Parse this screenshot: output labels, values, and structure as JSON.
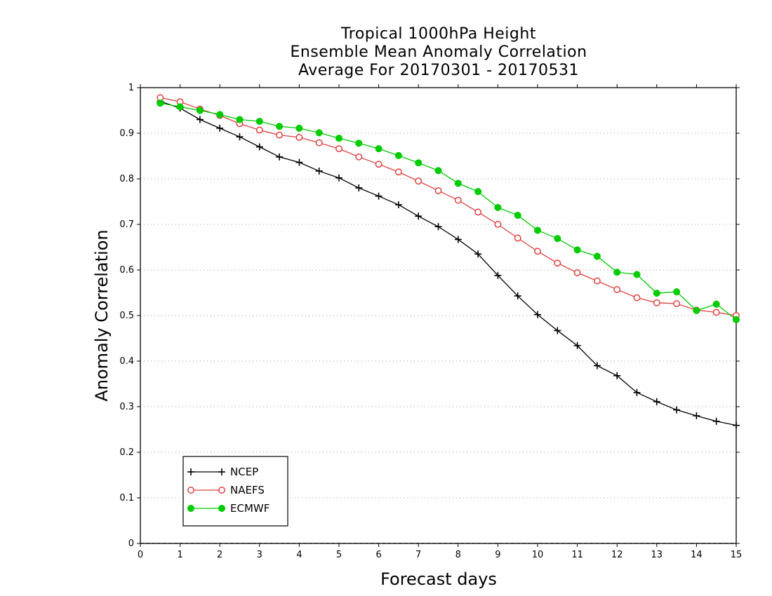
{
  "chart_data": {
    "type": "line",
    "title": [
      "Tropical 1000hPa Height",
      "Ensemble Mean Anomaly Correlation",
      "Average For 20170301 - 20170531"
    ],
    "xlabel": "Forecast days",
    "ylabel": "Anomaly Correlation",
    "xlim": [
      0,
      15
    ],
    "ylim": [
      0,
      1
    ],
    "x_ticks": [
      "0",
      "1",
      "2",
      "3",
      "4",
      "5",
      "6",
      "7",
      "8",
      "9",
      "10",
      "11",
      "12",
      "13",
      "14",
      "15"
    ],
    "y_ticks": [
      "0",
      "0.1",
      "0.2",
      "0.3",
      "0.4",
      "0.5",
      "0.6",
      "0.7",
      "0.8",
      "0.9",
      "1"
    ],
    "grid": "dotted-horizontal",
    "legend_position": "bottom-left",
    "x": [
      0.5,
      1,
      1.5,
      2,
      2.5,
      3,
      3.5,
      4,
      4.5,
      5,
      5.5,
      6,
      6.5,
      7,
      7.5,
      8,
      8.5,
      9,
      9.5,
      10,
      10.5,
      11,
      11.5,
      12,
      12.5,
      13,
      13.5,
      14,
      14.5,
      15
    ],
    "series": [
      {
        "name": "NCEP",
        "color": "#000000",
        "marker": "plus",
        "values": [
          0.97,
          0.955,
          0.93,
          0.911,
          0.892,
          0.87,
          0.848,
          0.836,
          0.817,
          0.802,
          0.78,
          0.762,
          0.743,
          0.718,
          0.695,
          0.667,
          0.635,
          0.588,
          0.543,
          0.502,
          0.467,
          0.434,
          0.39,
          0.368,
          0.331,
          0.311,
          0.293,
          0.28,
          0.268,
          0.259
        ]
      },
      {
        "name": "NAEFS",
        "color": "#e04040",
        "marker": "open-circle",
        "values": [
          0.978,
          0.969,
          0.953,
          0.939,
          0.921,
          0.907,
          0.896,
          0.891,
          0.879,
          0.866,
          0.848,
          0.832,
          0.815,
          0.795,
          0.774,
          0.753,
          0.727,
          0.7,
          0.67,
          0.641,
          0.615,
          0.594,
          0.576,
          0.557,
          0.539,
          0.528,
          0.526,
          0.512,
          0.507,
          0.5
        ]
      },
      {
        "name": "ECMWF",
        "color": "#00cc00",
        "marker": "filled-circle",
        "values": [
          0.966,
          0.958,
          0.95,
          0.941,
          0.93,
          0.926,
          0.915,
          0.911,
          0.901,
          0.889,
          0.878,
          0.866,
          0.851,
          0.835,
          0.818,
          0.79,
          0.772,
          0.737,
          0.72,
          0.687,
          0.669,
          0.644,
          0.63,
          0.595,
          0.59,
          0.549,
          0.552,
          0.511,
          0.525,
          0.491
        ]
      }
    ]
  }
}
